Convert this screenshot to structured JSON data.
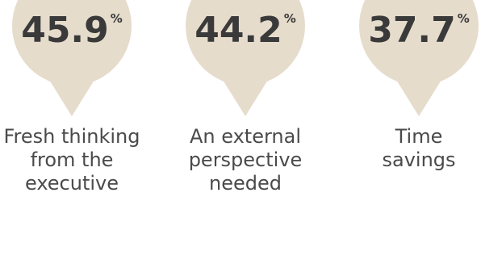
{
  "chart_data": {
    "type": "bar",
    "categories": [
      "Fresh thinking from the executive",
      "An external perspective needed",
      "Time savings"
    ],
    "values": [
      45.9,
      44.2,
      37.7
    ],
    "unit": "%",
    "value_labels": [
      "45.9",
      "44.2",
      "37.7"
    ],
    "category_lines": [
      [
        "Fresh thinking",
        "from the",
        "executive"
      ],
      [
        "An external",
        "perspective",
        "needed"
      ],
      [
        "Time",
        "savings"
      ]
    ],
    "colors": {
      "bubble": "#e6dccc",
      "value_text": "#3a3a3a",
      "label_text": "#4a4a4a"
    }
  }
}
